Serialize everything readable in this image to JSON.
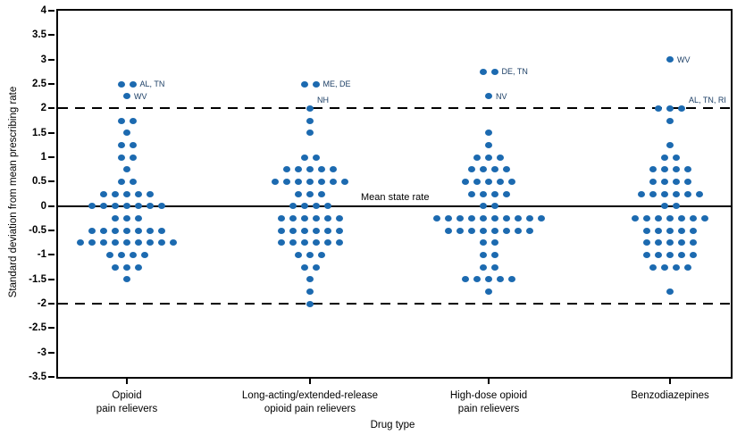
{
  "chart_data": {
    "type": "scatter",
    "title": "",
    "xlabel": "Drug type",
    "ylabel": "Standard deviation from mean prescribing rate",
    "ylim": [
      -3.5,
      4
    ],
    "grid": false,
    "yticks": [
      {
        "value": 4,
        "label": "4"
      },
      {
        "value": 3.5,
        "label": "3.5"
      },
      {
        "value": 3,
        "label": "3"
      },
      {
        "value": 2.5,
        "label": "2.5"
      },
      {
        "value": 2,
        "label": "2"
      },
      {
        "value": 1.5,
        "label": "1.5"
      },
      {
        "value": 1,
        "label": "1"
      },
      {
        "value": 0.5,
        "label": "0.5"
      },
      {
        "value": 0,
        "label": "0"
      },
      {
        "value": -0.5,
        "label": "-0.5"
      },
      {
        "value": -1,
        "label": "-1"
      },
      {
        "value": -1.5,
        "label": "-1.5"
      },
      {
        "value": -2,
        "label": "-2"
      },
      {
        "value": -2.5,
        "label": "-2.5"
      },
      {
        "value": -3,
        "label": "-3"
      },
      {
        "value": -3.5,
        "label": "-3.5"
      }
    ],
    "dot_color": "#1c6ab0",
    "annotation_color": "#1c3f66",
    "reference_lines": [
      {
        "y": 2,
        "style": "dashed",
        "label": ""
      },
      {
        "y": 0,
        "style": "solid",
        "label": "Mean state rate"
      },
      {
        "y": -2,
        "style": "dashed",
        "label": ""
      }
    ],
    "categories": [
      {
        "name": "Opioid pain relievers",
        "label_lines": [
          "Opioid",
          "pain relievers"
        ],
        "stacks": [
          {
            "y": 2.5,
            "n": 2,
            "label": "AL, TN",
            "label_pos": "right"
          },
          {
            "y": 2.25,
            "n": 1,
            "label": "WV",
            "label_pos": "right"
          },
          {
            "y": 1.75,
            "n": 2
          },
          {
            "y": 1.5,
            "n": 1
          },
          {
            "y": 1.25,
            "n": 2
          },
          {
            "y": 1.0,
            "n": 2
          },
          {
            "y": 0.75,
            "n": 1
          },
          {
            "y": 0.5,
            "n": 2
          },
          {
            "y": 0.25,
            "n": 5
          },
          {
            "y": 0.0,
            "n": 7
          },
          {
            "y": -0.25,
            "n": 3
          },
          {
            "y": -0.5,
            "n": 7
          },
          {
            "y": -0.75,
            "n": 9
          },
          {
            "y": -1.0,
            "n": 4
          },
          {
            "y": -1.25,
            "n": 3
          },
          {
            "y": -1.5,
            "n": 1
          }
        ]
      },
      {
        "name": "Long-acting/extended-release opioid pain relievers",
        "label_lines": [
          "Long-acting/extended-release",
          "opioid pain relievers"
        ],
        "stacks": [
          {
            "y": 2.5,
            "n": 2,
            "label": "ME, DE",
            "label_pos": "right"
          },
          {
            "y": 2.0,
            "n": 1,
            "label": "NH",
            "label_pos": "above-right"
          },
          {
            "y": 1.75,
            "n": 1
          },
          {
            "y": 1.5,
            "n": 1
          },
          {
            "y": 1.0,
            "n": 2
          },
          {
            "y": 0.75,
            "n": 5
          },
          {
            "y": 0.5,
            "n": 7
          },
          {
            "y": 0.25,
            "n": 3
          },
          {
            "y": 0.0,
            "n": 4
          },
          {
            "y": -0.25,
            "n": 6
          },
          {
            "y": -0.5,
            "n": 6
          },
          {
            "y": -0.75,
            "n": 6
          },
          {
            "y": -1.0,
            "n": 3
          },
          {
            "y": -1.25,
            "n": 2
          },
          {
            "y": -1.5,
            "n": 1
          },
          {
            "y": -1.75,
            "n": 1
          },
          {
            "y": -2.0,
            "n": 1
          }
        ]
      },
      {
        "name": "High-dose opioid pain relievers",
        "label_lines": [
          "High-dose opioid",
          "pain relievers"
        ],
        "stacks": [
          {
            "y": 2.75,
            "n": 2,
            "label": "DE, TN",
            "label_pos": "right"
          },
          {
            "y": 2.25,
            "n": 1,
            "label": "NV",
            "label_pos": "right"
          },
          {
            "y": 1.5,
            "n": 1
          },
          {
            "y": 1.25,
            "n": 1
          },
          {
            "y": 1.0,
            "n": 3
          },
          {
            "y": 0.75,
            "n": 4
          },
          {
            "y": 0.5,
            "n": 5
          },
          {
            "y": 0.25,
            "n": 4
          },
          {
            "y": 0.0,
            "n": 2
          },
          {
            "y": -0.25,
            "n": 10
          },
          {
            "y": -0.5,
            "n": 8
          },
          {
            "y": -0.75,
            "n": 2
          },
          {
            "y": -1.0,
            "n": 2
          },
          {
            "y": -1.25,
            "n": 2
          },
          {
            "y": -1.5,
            "n": 5
          },
          {
            "y": -1.75,
            "n": 1
          }
        ]
      },
      {
        "name": "Benzodiazepines",
        "label_lines": [
          "Benzodiazepines"
        ],
        "stacks": [
          {
            "y": 3.0,
            "n": 1,
            "label": "WV",
            "label_pos": "right"
          },
          {
            "y": 2.0,
            "n": 3,
            "label": "AL, TN, RI",
            "label_pos": "above-right"
          },
          {
            "y": 1.75,
            "n": 1
          },
          {
            "y": 1.25,
            "n": 1
          },
          {
            "y": 1.0,
            "n": 2
          },
          {
            "y": 0.75,
            "n": 4
          },
          {
            "y": 0.5,
            "n": 4
          },
          {
            "y": 0.25,
            "n": 6
          },
          {
            "y": 0.0,
            "n": 2
          },
          {
            "y": -0.25,
            "n": 7
          },
          {
            "y": -0.5,
            "n": 5
          },
          {
            "y": -0.75,
            "n": 5
          },
          {
            "y": -1.0,
            "n": 5
          },
          {
            "y": -1.25,
            "n": 4
          },
          {
            "y": -1.75,
            "n": 1
          }
        ]
      }
    ]
  }
}
